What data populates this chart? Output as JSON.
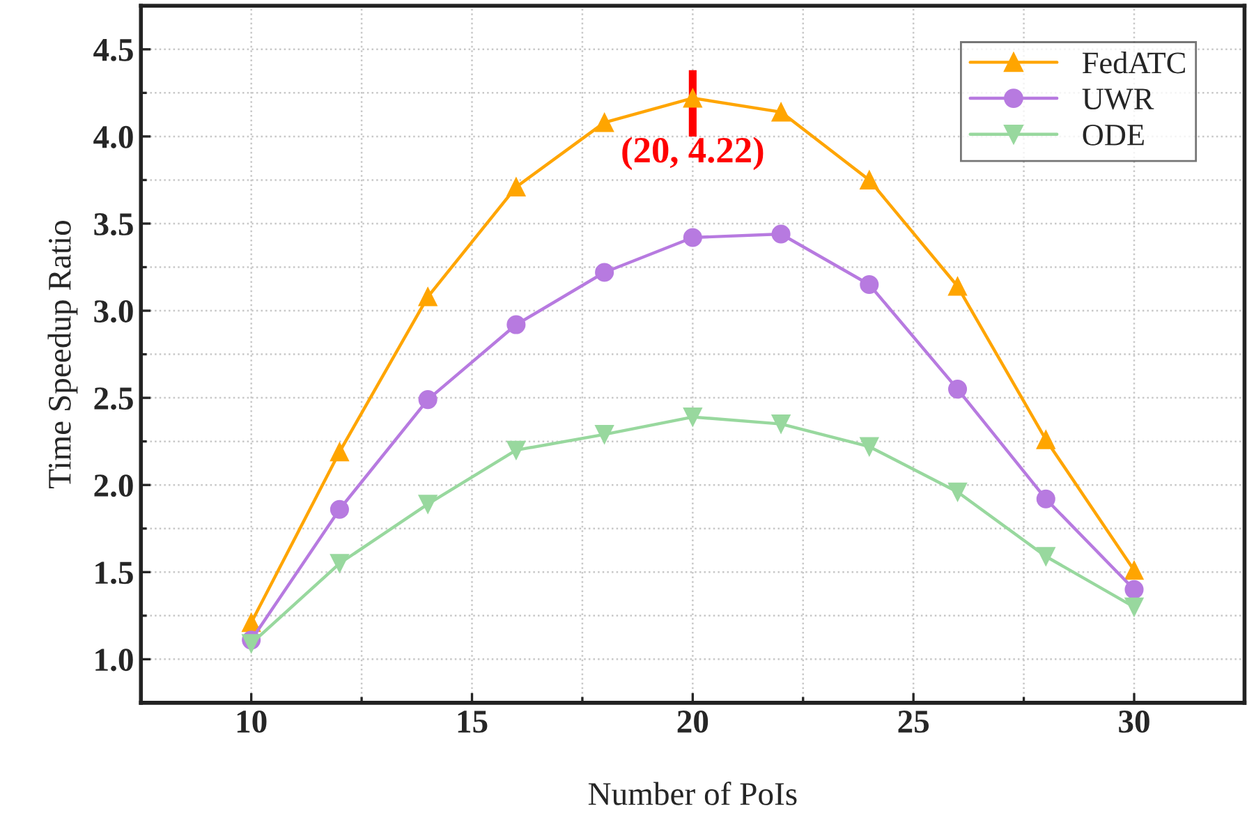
{
  "chart_data": {
    "type": "line",
    "xlabel": "Number of PoIs",
    "ylabel": "Time Speedup Ratio",
    "x": [
      10,
      12,
      14,
      16,
      18,
      20,
      22,
      24,
      26,
      28,
      30
    ],
    "series": [
      {
        "name": "FedATC",
        "color": "#ffa500",
        "marker": "triangle",
        "values": [
          1.21,
          2.19,
          3.08,
          3.71,
          4.08,
          4.22,
          4.14,
          3.75,
          3.14,
          2.26,
          1.51
        ]
      },
      {
        "name": "UWR",
        "color": "#b77ae0",
        "marker": "circle",
        "values": [
          1.11,
          1.86,
          2.49,
          2.92,
          3.22,
          3.42,
          3.44,
          3.15,
          2.55,
          1.92,
          1.4
        ]
      },
      {
        "name": "ODE",
        "color": "#98d89e",
        "marker": "triangle_down",
        "values": [
          1.09,
          1.55,
          1.89,
          2.2,
          2.29,
          2.39,
          2.35,
          2.22,
          1.96,
          1.59,
          1.3
        ]
      }
    ],
    "xlim": [
      7.5,
      32.5
    ],
    "xticks": [
      10,
      15,
      20,
      25,
      30
    ],
    "ylim": [
      0.75,
      4.75
    ],
    "yticks": [
      {
        "value": 1,
        "label": "1.0"
      },
      1.5,
      {
        "value": 2,
        "label": "2.0"
      },
      2.5,
      {
        "value": 3,
        "label": "3.0"
      },
      3.5,
      {
        "value": 4,
        "label": "4.0"
      },
      4.5
    ],
    "grid": true,
    "legend": "top right",
    "line_style": "solid",
    "annotations": [
      {
        "text": "(20, 4.22)",
        "x": 20,
        "y": 4.22
      }
    ]
  }
}
